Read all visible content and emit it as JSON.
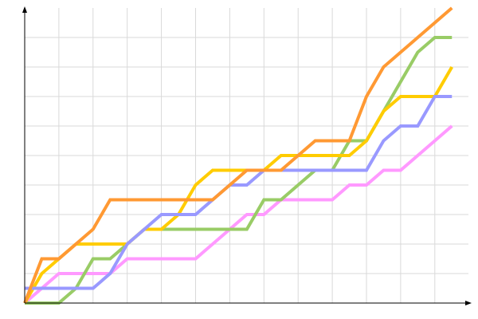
{
  "chart_data": {
    "type": "line",
    "title": "",
    "xlabel": "",
    "ylabel": "",
    "x": [
      0,
      1,
      2,
      3,
      4,
      5,
      6,
      7,
      8,
      9,
      10,
      11,
      12,
      13,
      14,
      15,
      16,
      17,
      18,
      19,
      20,
      21,
      22,
      23,
      24,
      25
    ],
    "xlim": [
      0,
      26
    ],
    "ylim": [
      0,
      20
    ],
    "grid": true,
    "legend": "none",
    "series": [
      {
        "color": "#FF99FF",
        "values": [
          0,
          1,
          2,
          2,
          2,
          2,
          3,
          3,
          3,
          3,
          3,
          4,
          5,
          6,
          6,
          7,
          7,
          7,
          7,
          8,
          8,
          9,
          9,
          10,
          11,
          12
        ]
      },
      {
        "color": "#99CC66",
        "values": [
          0,
          0,
          0,
          1,
          3,
          3,
          4,
          5,
          5,
          5,
          5,
          5,
          5,
          5,
          7,
          7,
          8,
          9,
          9,
          11,
          11,
          13,
          15,
          17,
          18,
          18
        ]
      },
      {
        "color": "#FFCC00",
        "values": [
          0,
          2,
          3,
          4,
          4,
          4,
          4,
          5,
          5,
          6,
          8,
          9,
          9,
          9,
          9,
          10,
          10,
          10,
          10,
          10,
          11,
          13,
          14,
          14,
          14,
          16
        ]
      },
      {
        "color": "#9999FF",
        "values": [
          1,
          1,
          1,
          1,
          1,
          2,
          4,
          5,
          6,
          6,
          6,
          7,
          8,
          8,
          9,
          9,
          9,
          9,
          9,
          9,
          9,
          11,
          12,
          12,
          14,
          14
        ]
      },
      {
        "color": "#FF9933",
        "values": [
          0,
          3,
          3,
          4,
          5,
          7,
          7,
          7,
          7,
          7,
          7,
          7,
          8,
          9,
          9,
          9,
          10,
          11,
          11,
          11,
          14,
          16,
          17,
          18,
          19,
          20
        ]
      }
    ]
  }
}
